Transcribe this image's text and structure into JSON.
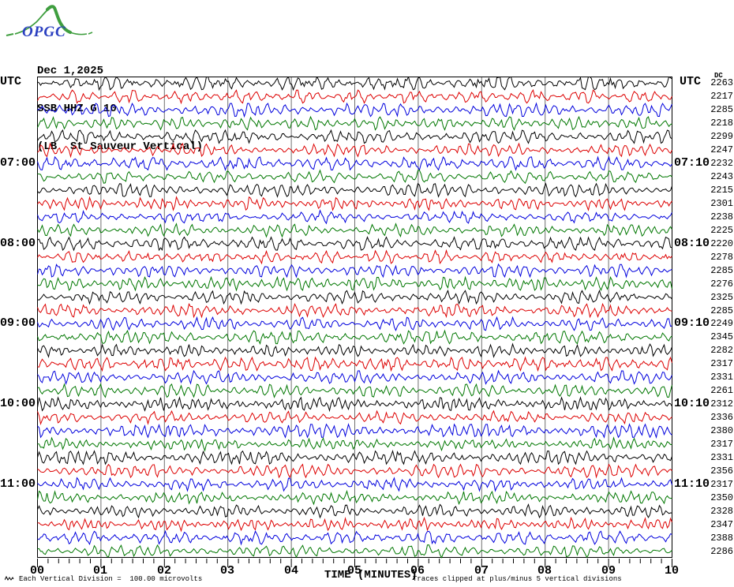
{
  "logo": {
    "text": "OPGC",
    "text_color": "#2a3fc0",
    "curve_color": "#3f9e3f"
  },
  "header": {
    "line1": "Dec 1,2025",
    "line2": "SSB HHZ G 10",
    "line3": "(LB  St Sauveur Vertical)"
  },
  "axes": {
    "left_title": "UTC",
    "right_title": "UTC",
    "right_col_header": "DC",
    "x_label": "TIME (MINUTES)",
    "x_ticks": [
      "00",
      "01",
      "02",
      "03",
      "04",
      "05",
      "06",
      "07",
      "08",
      "09",
      "10"
    ]
  },
  "footer": {
    "left": "Each Vertical Division =  100.00 microvolts",
    "right": "Traces clipped at plus/minus 5 vertical divisions"
  },
  "chart_data": {
    "type": "line",
    "subtype": "helicorder-seismogram",
    "date": "Dec 1,2025",
    "station": "SSB HHZ G 10",
    "station_description": "(LB  St Sauveur Vertical)",
    "xlabel": "TIME (MINUTES)",
    "x_range_minutes": [
      0,
      10
    ],
    "minutes_per_line": 10,
    "minor_ticks_between_major": 5,
    "rows": 36,
    "grid": "vertical-line-each-minute",
    "trace_color_cycle": [
      "black",
      "red",
      "blue",
      "green"
    ],
    "trace_colors_hex": {
      "black": "#000000",
      "red": "#dd0000",
      "blue": "#0000dd",
      "green": "#007700"
    },
    "left_hour_labels": [
      {
        "row": 6,
        "label": "07:00"
      },
      {
        "row": 12,
        "label": "08:00"
      },
      {
        "row": 18,
        "label": "09:00"
      },
      {
        "row": 24,
        "label": "10:00"
      },
      {
        "row": 30,
        "label": "11:00"
      }
    ],
    "right_hour_labels": [
      {
        "row": 6,
        "label": "07:10"
      },
      {
        "row": 12,
        "label": "08:10"
      },
      {
        "row": 18,
        "label": "09:10"
      },
      {
        "row": 24,
        "label": "10:10"
      },
      {
        "row": 30,
        "label": "11:10"
      }
    ],
    "dc_values": [
      2263,
      2217,
      2285,
      2218,
      2299,
      2247,
      2232,
      2243,
      2215,
      2301,
      2238,
      2225,
      2220,
      2278,
      2285,
      2276,
      2325,
      2285,
      2249,
      2345,
      2282,
      2317,
      2331,
      2261,
      2312,
      2336,
      2380,
      2317,
      2331,
      2356,
      2317,
      2350,
      2328,
      2347,
      2388,
      2286
    ],
    "amplitude_note": "Each Vertical Division =  100.00 microvolts",
    "clip_note": "Traces clipped at plus/minus 5 vertical divisions"
  }
}
